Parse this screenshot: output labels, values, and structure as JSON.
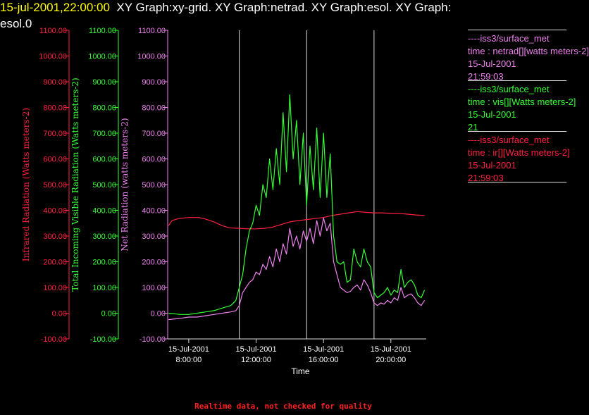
{
  "header": {
    "timestamp": "15-jul-2001,22:00:00",
    "title_rest": "XY Graph:xy-grid.  XY Graph:netrad.  XY Graph:esol.  XY Graph:",
    "title_line2": "esol.0"
  },
  "legend": [
    {
      "station": "----iss3/surface_met",
      "variable": "time : netrad[][watts meters-2]",
      "date": "15-Jul-2001",
      "time": "21:59:03",
      "color": "#ee82ee"
    },
    {
      "station": "----iss3/surface_met",
      "variable": "time : vis[][Watts meters-2]",
      "date": "15-Jul-2001",
      "time": "21",
      "color": "#33ff33"
    },
    {
      "station": "----iss3/surface_met",
      "variable": "time : ir[][Watts meters-2]",
      "date": "15-Jul-2001",
      "time": "21:59:03",
      "color": "#ff2040"
    }
  ],
  "footer": "Realtime data, not checked for quality",
  "chart_data": {
    "type": "line",
    "xlabel": "Time",
    "x_range_hours": [
      6.75,
      22.1
    ],
    "x_ticks": [
      {
        "hour": 8,
        "date": "15-Jul-2001",
        "time": "8:00:00"
      },
      {
        "hour": 12,
        "date": "15-Jul-2001",
        "time": "12:00:00"
      },
      {
        "hour": 16,
        "date": "15-Jul-2001",
        "time": "16:00:00"
      },
      {
        "hour": 20,
        "date": "15-Jul-2001",
        "time": "20:00:00"
      }
    ],
    "vertical_gridlines_hours": [
      11,
      15,
      19
    ],
    "axes": [
      {
        "id": "ir",
        "label": "Infrared Radiation (Watts meters-2)",
        "color": "#ff2040",
        "ylim": [
          -100,
          1100
        ]
      },
      {
        "id": "vis",
        "label": "Total Incoming Visible Radiation (Watts meters-2)",
        "color": "#33ff33",
        "ylim": [
          -100,
          1100
        ]
      },
      {
        "id": "net",
        "label": "Net Radiation (watts meters-2)",
        "color": "#ee82ee",
        "ylim": [
          -100,
          1100
        ]
      }
    ],
    "y_ticks": [
      -100,
      0,
      100,
      200,
      300,
      400,
      500,
      600,
      700,
      800,
      900,
      1000,
      1100
    ],
    "y_tick_labels": [
      "-100.00",
      "0.00",
      "100.00",
      "200.00",
      "300.00",
      "400.00",
      "500.00",
      "600.00",
      "700.00",
      "800.00",
      "900.00",
      "1000.00",
      "1100.00"
    ],
    "series": [
      {
        "axis": "ir",
        "color": "#ff2040",
        "points": [
          [
            6.8,
            340
          ],
          [
            7.0,
            360
          ],
          [
            7.4,
            368
          ],
          [
            8.0,
            372
          ],
          [
            8.6,
            372
          ],
          [
            9.0,
            366
          ],
          [
            9.5,
            355
          ],
          [
            10.0,
            340
          ],
          [
            10.4,
            332
          ],
          [
            11.0,
            330
          ],
          [
            11.5,
            328
          ],
          [
            12.0,
            328
          ],
          [
            12.5,
            330
          ],
          [
            13.0,
            335
          ],
          [
            13.5,
            345
          ],
          [
            14.0,
            355
          ],
          [
            14.5,
            360
          ],
          [
            15.0,
            364
          ],
          [
            15.5,
            368
          ],
          [
            16.0,
            372
          ],
          [
            16.5,
            380
          ],
          [
            17.0,
            385
          ],
          [
            17.5,
            390
          ],
          [
            18.0,
            395
          ],
          [
            18.5,
            392
          ],
          [
            19.0,
            390
          ],
          [
            19.5,
            390
          ],
          [
            20.0,
            388
          ],
          [
            20.5,
            388
          ],
          [
            21.0,
            385
          ],
          [
            21.5,
            382
          ],
          [
            22.0,
            380
          ]
        ]
      },
      {
        "axis": "vis",
        "color": "#33ff33",
        "points": [
          [
            6.8,
            0
          ],
          [
            7.5,
            -5
          ],
          [
            8.0,
            -5
          ],
          [
            8.5,
            0
          ],
          [
            9.0,
            5
          ],
          [
            9.5,
            10
          ],
          [
            10.0,
            20
          ],
          [
            10.5,
            30
          ],
          [
            10.8,
            50
          ],
          [
            11.0,
            100
          ],
          [
            11.2,
            150
          ],
          [
            11.4,
            250
          ],
          [
            11.6,
            320
          ],
          [
            11.8,
            350
          ],
          [
            12.0,
            420
          ],
          [
            12.2,
            380
          ],
          [
            12.4,
            500
          ],
          [
            12.6,
            450
          ],
          [
            12.8,
            600
          ],
          [
            13.0,
            480
          ],
          [
            13.2,
            640
          ],
          [
            13.4,
            500
          ],
          [
            13.6,
            780
          ],
          [
            13.8,
            550
          ],
          [
            14.0,
            850
          ],
          [
            14.2,
            600
          ],
          [
            14.4,
            750
          ],
          [
            14.6,
            500
          ],
          [
            14.8,
            700
          ],
          [
            15.0,
            420
          ],
          [
            15.2,
            650
          ],
          [
            15.4,
            480
          ],
          [
            15.6,
            720
          ],
          [
            15.8,
            450
          ],
          [
            16.0,
            700
          ],
          [
            16.2,
            450
          ],
          [
            16.4,
            620
          ],
          [
            16.6,
            300
          ],
          [
            16.8,
            200
          ],
          [
            17.0,
            190
          ],
          [
            17.2,
            200
          ],
          [
            17.4,
            120
          ],
          [
            17.6,
            130
          ],
          [
            17.8,
            250
          ],
          [
            18.0,
            200
          ],
          [
            18.2,
            180
          ],
          [
            18.4,
            250
          ],
          [
            18.6,
            200
          ],
          [
            18.8,
            180
          ],
          [
            19.0,
            80
          ],
          [
            19.2,
            60
          ],
          [
            19.4,
            70
          ],
          [
            19.6,
            80
          ],
          [
            19.8,
            100
          ],
          [
            20.0,
            70
          ],
          [
            20.2,
            90
          ],
          [
            20.4,
            80
          ],
          [
            20.6,
            170
          ],
          [
            20.8,
            100
          ],
          [
            21.0,
            120
          ],
          [
            21.2,
            130
          ],
          [
            21.4,
            110
          ],
          [
            21.6,
            70
          ],
          [
            21.8,
            60
          ],
          [
            22.0,
            90
          ]
        ]
      },
      {
        "axis": "net",
        "color": "#ee82ee",
        "points": [
          [
            6.8,
            -25
          ],
          [
            7.5,
            -20
          ],
          [
            8.0,
            -15
          ],
          [
            8.5,
            -15
          ],
          [
            9.0,
            -10
          ],
          [
            9.5,
            -5
          ],
          [
            10.0,
            0
          ],
          [
            10.5,
            5
          ],
          [
            10.8,
            10
          ],
          [
            11.0,
            30
          ],
          [
            11.2,
            80
          ],
          [
            11.4,
            100
          ],
          [
            11.6,
            120
          ],
          [
            11.8,
            130
          ],
          [
            12.0,
            160
          ],
          [
            12.2,
            150
          ],
          [
            12.4,
            190
          ],
          [
            12.6,
            170
          ],
          [
            12.8,
            220
          ],
          [
            13.0,
            180
          ],
          [
            13.2,
            250
          ],
          [
            13.4,
            200
          ],
          [
            13.6,
            270
          ],
          [
            13.8,
            230
          ],
          [
            14.0,
            330
          ],
          [
            14.2,
            260
          ],
          [
            14.4,
            300
          ],
          [
            14.6,
            250
          ],
          [
            14.8,
            320
          ],
          [
            15.0,
            280
          ],
          [
            15.2,
            330
          ],
          [
            15.4,
            270
          ],
          [
            15.6,
            360
          ],
          [
            15.8,
            300
          ],
          [
            16.0,
            370
          ],
          [
            16.2,
            320
          ],
          [
            16.4,
            350
          ],
          [
            16.6,
            200
          ],
          [
            16.8,
            150
          ],
          [
            17.0,
            100
          ],
          [
            17.2,
            90
          ],
          [
            17.4,
            80
          ],
          [
            17.6,
            85
          ],
          [
            17.8,
            100
          ],
          [
            18.0,
            110
          ],
          [
            18.2,
            90
          ],
          [
            18.4,
            130
          ],
          [
            18.6,
            110
          ],
          [
            18.8,
            80
          ],
          [
            19.0,
            40
          ],
          [
            19.2,
            30
          ],
          [
            19.4,
            40
          ],
          [
            19.6,
            35
          ],
          [
            19.8,
            50
          ],
          [
            20.0,
            40
          ],
          [
            20.2,
            60
          ],
          [
            20.4,
            50
          ],
          [
            20.6,
            100
          ],
          [
            20.8,
            60
          ],
          [
            21.0,
            70
          ],
          [
            21.2,
            75
          ],
          [
            21.4,
            60
          ],
          [
            21.6,
            40
          ],
          [
            21.8,
            30
          ],
          [
            22.0,
            50
          ]
        ]
      }
    ]
  }
}
